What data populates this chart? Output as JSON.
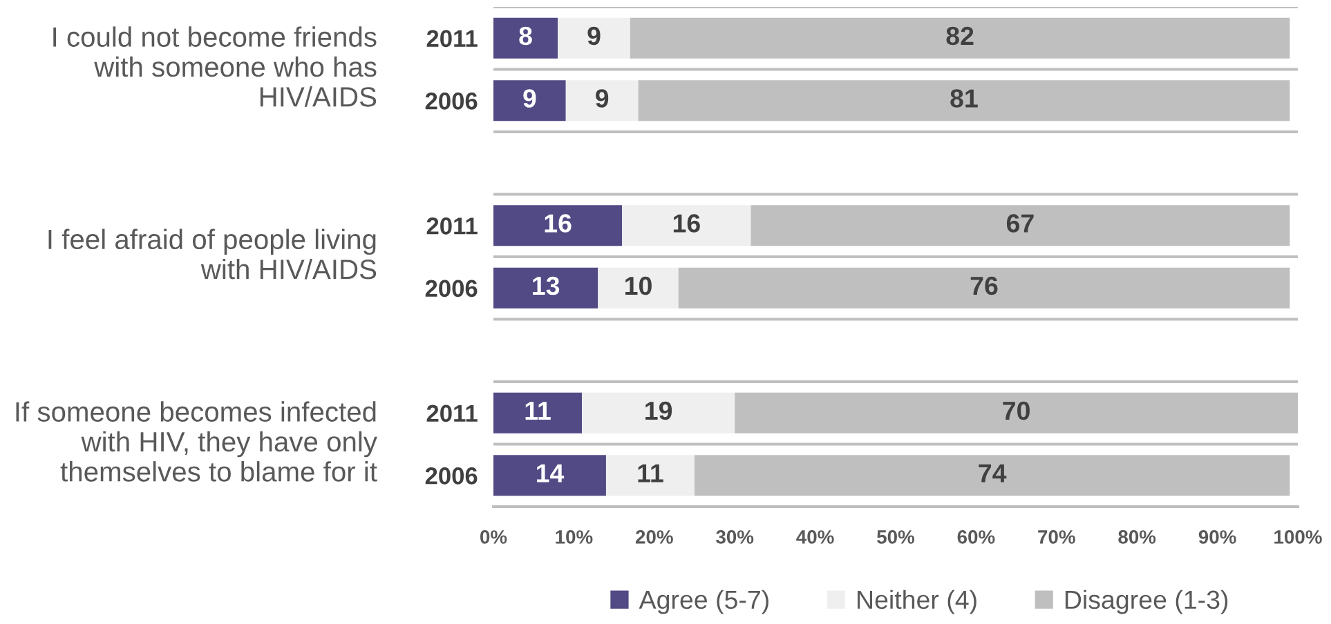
{
  "chart_data": {
    "type": "bar",
    "orientation": "horizontal",
    "stacked": true,
    "categories": [
      "2011",
      "2006",
      null,
      "2011",
      "2006",
      null,
      "2011",
      "2006"
    ],
    "series": [
      {
        "name": "Agree (5-7)",
        "color": "#514a85",
        "values": [
          8,
          9,
          null,
          16,
          13,
          null,
          11,
          14
        ]
      },
      {
        "name": "Neither (4)",
        "color": "#efefef",
        "values": [
          9,
          9,
          null,
          16,
          10,
          null,
          19,
          11
        ]
      },
      {
        "name": "Disagree (1-3)",
        "color": "#bfbfbf",
        "values": [
          82,
          81,
          null,
          67,
          76,
          null,
          70,
          74
        ]
      }
    ],
    "xlim": [
      0,
      100
    ],
    "xticks": [
      {
        "value": 0,
        "label": "0%"
      },
      {
        "value": 10,
        "label": "10%"
      },
      {
        "value": 20,
        "label": "20%"
      },
      {
        "value": 30,
        "label": "30%"
      },
      {
        "value": 40,
        "label": "40%"
      },
      {
        "value": 50,
        "label": "50%"
      },
      {
        "value": 60,
        "label": "60%"
      },
      {
        "value": 70,
        "label": "70%"
      },
      {
        "value": 80,
        "label": "80%"
      },
      {
        "value": 90,
        "label": "90%"
      },
      {
        "value": 100,
        "label": "100%"
      }
    ],
    "data_labels": true,
    "legend": "bottom",
    "grid": "y",
    "annotations": [
      "I could not become friends\nwith someone who has\nHIV/AIDS",
      "I feel afraid of people living\nwith HIV/AIDS",
      "If someone becomes infected\nwith HIV, they have only\nthemselves to blame for it"
    ]
  }
}
